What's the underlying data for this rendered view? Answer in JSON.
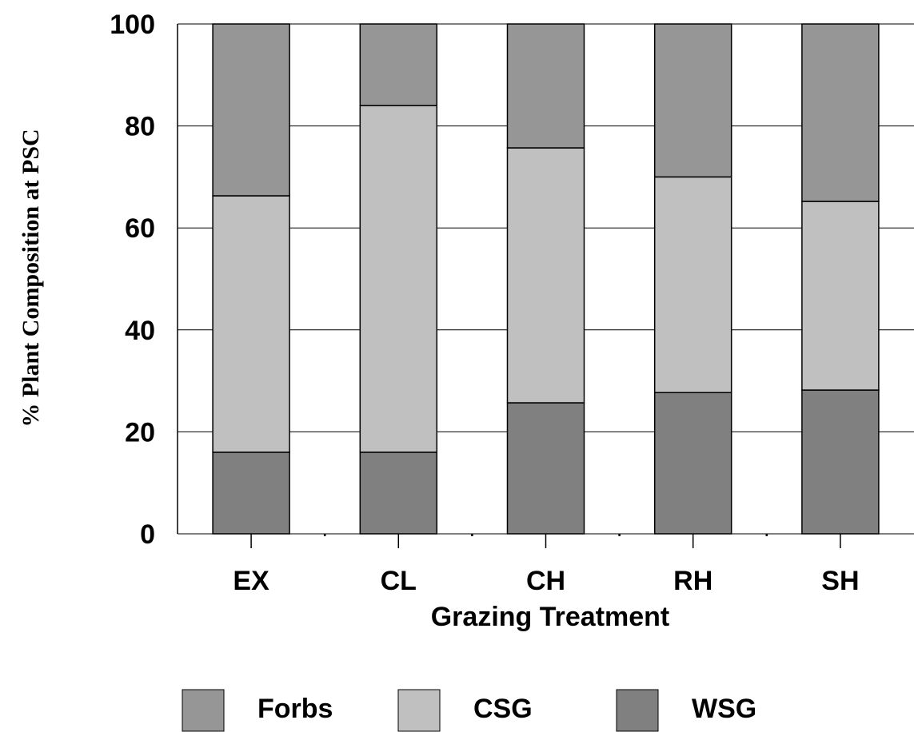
{
  "chart_data": {
    "type": "bar",
    "stacked": true,
    "categories": [
      "EX",
      "CL",
      "CH",
      "RH",
      "SH"
    ],
    "series": [
      {
        "name": "WSG",
        "values": [
          16,
          16,
          25.7,
          27.7,
          28.2
        ],
        "color": "#808080"
      },
      {
        "name": "CSG",
        "values": [
          50.3,
          68,
          50,
          42.3,
          37
        ],
        "color": "#c0c0c0"
      },
      {
        "name": "Forbs",
        "values": [
          33.7,
          16,
          24.3,
          30,
          34.8
        ],
        "color": "#969696"
      }
    ],
    "xlabel": "Grazing Treatment",
    "ylabel": "% Plant Composition at PSC",
    "ylim": [
      0,
      100
    ],
    "yticks": [
      "0",
      "20",
      "40",
      "60",
      "80",
      "100"
    ],
    "grid": true,
    "legend": {
      "position": "bottom",
      "items": [
        "Forbs",
        "CSG",
        "WSG"
      ]
    }
  }
}
